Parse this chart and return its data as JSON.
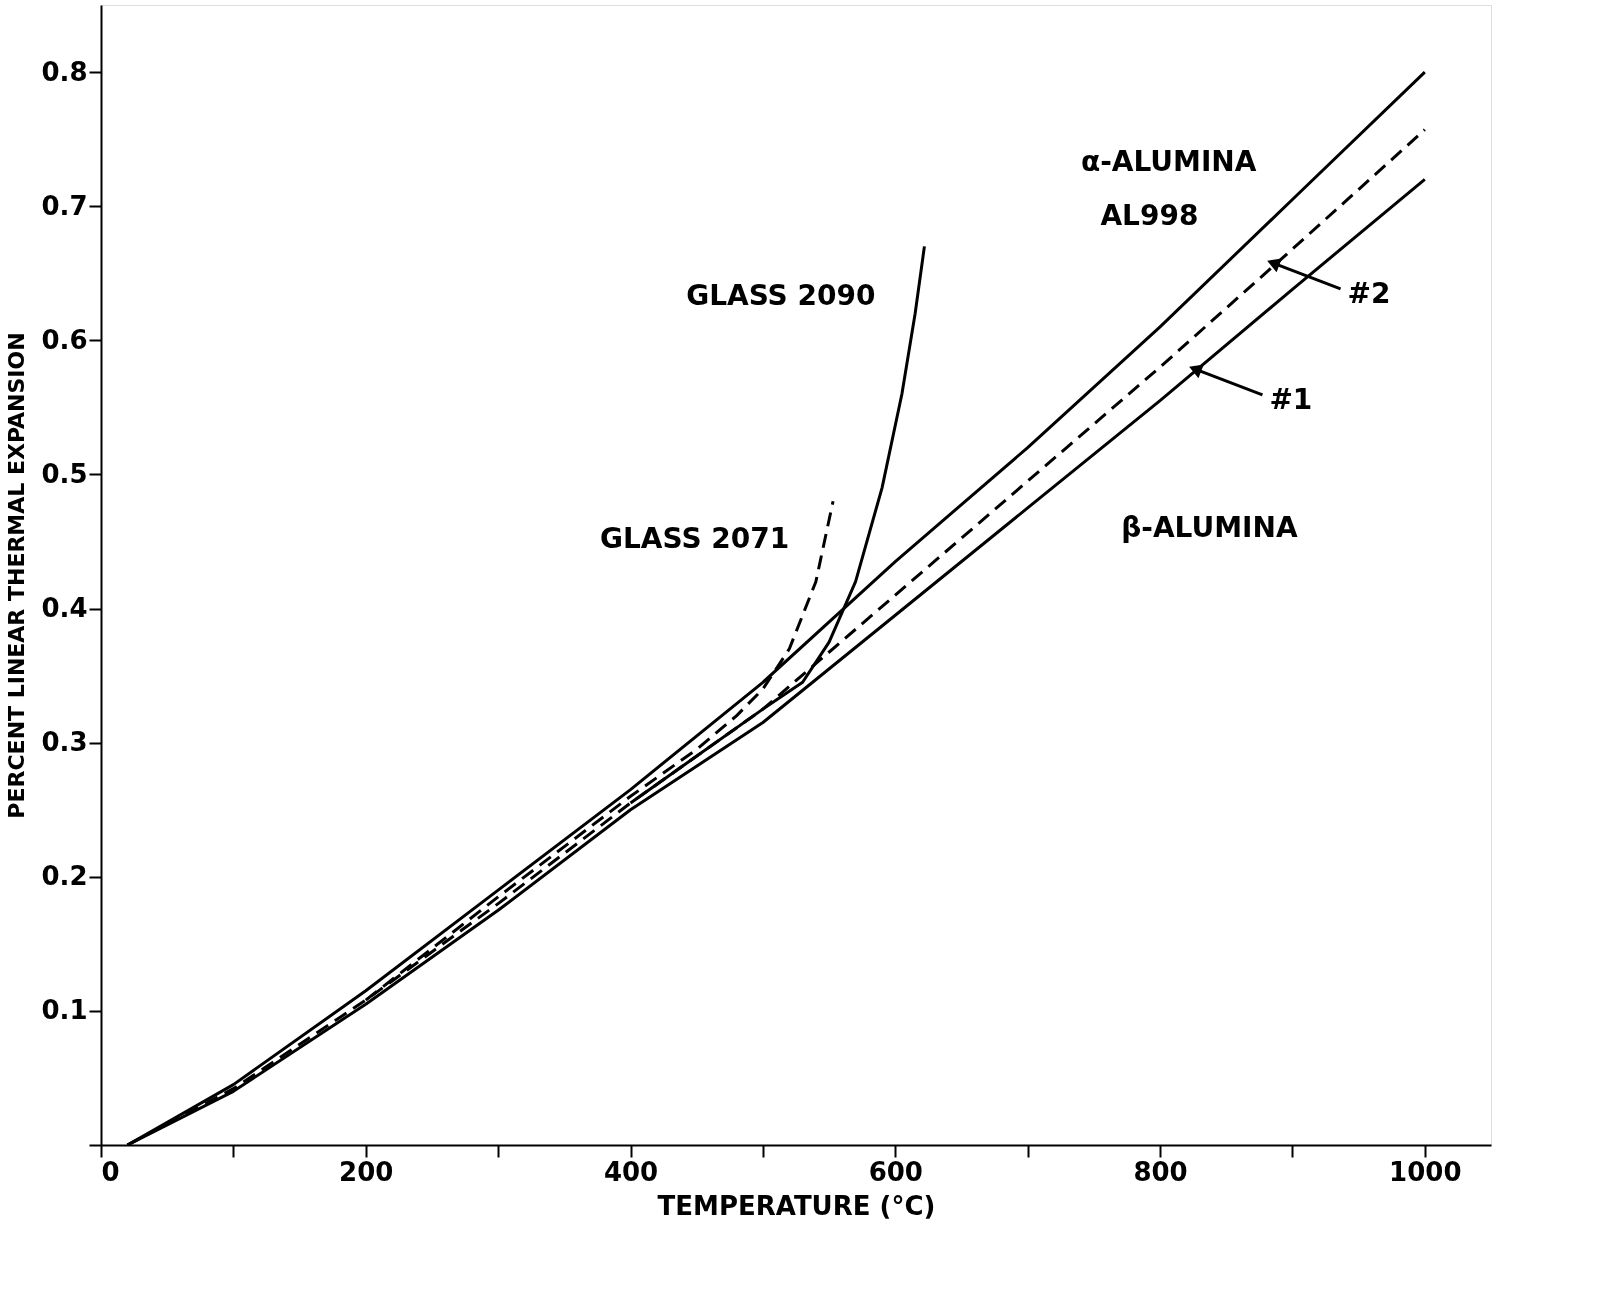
{
  "chart_data": {
    "type": "line",
    "xlabel": "TEMPERATURE (°C)",
    "ylabel": "PERCENT LINEAR THERMAL EXPANSION",
    "xlim": [
      0,
      1050
    ],
    "ylim": [
      0,
      0.85
    ],
    "xticks": [
      0,
      {
        "value": 100,
        "label": null
      },
      200,
      {
        "value": 300,
        "label": null
      },
      400,
      {
        "value": 500,
        "label": null
      },
      600,
      {
        "value": 700,
        "label": null
      },
      800,
      {
        "value": 900,
        "label": null
      },
      1000
    ],
    "yticks": [
      {
        "value": 0,
        "label": null
      },
      0.1,
      0.2,
      0.3,
      0.4,
      0.5,
      0.6,
      0.7,
      0.8
    ],
    "grid": false,
    "marker": "none",
    "series": [
      {
        "color": "#000000",
        "line_style": "solid",
        "x": [
          20,
          100,
          200,
          300,
          400,
          500,
          600,
          700,
          800,
          900,
          1000
        ],
        "values": [
          0,
          0.045,
          0.115,
          0.19,
          0.265,
          0.345,
          0.435,
          0.52,
          0.61,
          0.705,
          0.8
        ]
      },
      {
        "color": "#000000",
        "line_style": "dashed",
        "x": [
          20,
          100,
          200,
          300,
          400,
          500,
          600,
          700,
          800,
          900,
          1000
        ],
        "values": [
          0,
          0.042,
          0.108,
          0.18,
          0.255,
          0.325,
          0.41,
          0.495,
          0.58,
          0.668,
          0.757
        ]
      },
      {
        "color": "#000000",
        "line_style": "solid",
        "x": [
          20,
          100,
          200,
          300,
          400,
          500,
          600,
          700,
          800,
          900,
          1000
        ],
        "values": [
          0,
          0.04,
          0.105,
          0.175,
          0.25,
          0.315,
          0.395,
          0.475,
          0.555,
          0.638,
          0.72
        ]
      },
      {
        "color": "#000000",
        "line_style": "dashed",
        "x": [
          200,
          300,
          400,
          450,
          480,
          500,
          520,
          540,
          553
        ],
        "values": [
          0.108,
          0.185,
          0.26,
          0.295,
          0.32,
          0.34,
          0.37,
          0.42,
          0.48
        ]
      },
      {
        "color": "#000000",
        "line_style": "solid",
        "x": [
          400,
          500,
          530,
          550,
          570,
          590,
          605,
          615,
          622
        ],
        "values": [
          0.255,
          0.325,
          0.345,
          0.375,
          0.42,
          0.49,
          0.56,
          0.62,
          0.67
        ]
      }
    ],
    "annotations": [
      "GLASS 2090",
      "GLASS 2071",
      "α-ALUMINA",
      "AL998",
      "β-ALUMINA",
      {
        "text": "#2",
        "x": 887,
        "y": 0.657
      },
      {
        "text": "#1",
        "x": 828,
        "y": 0.578
      }
    ]
  }
}
